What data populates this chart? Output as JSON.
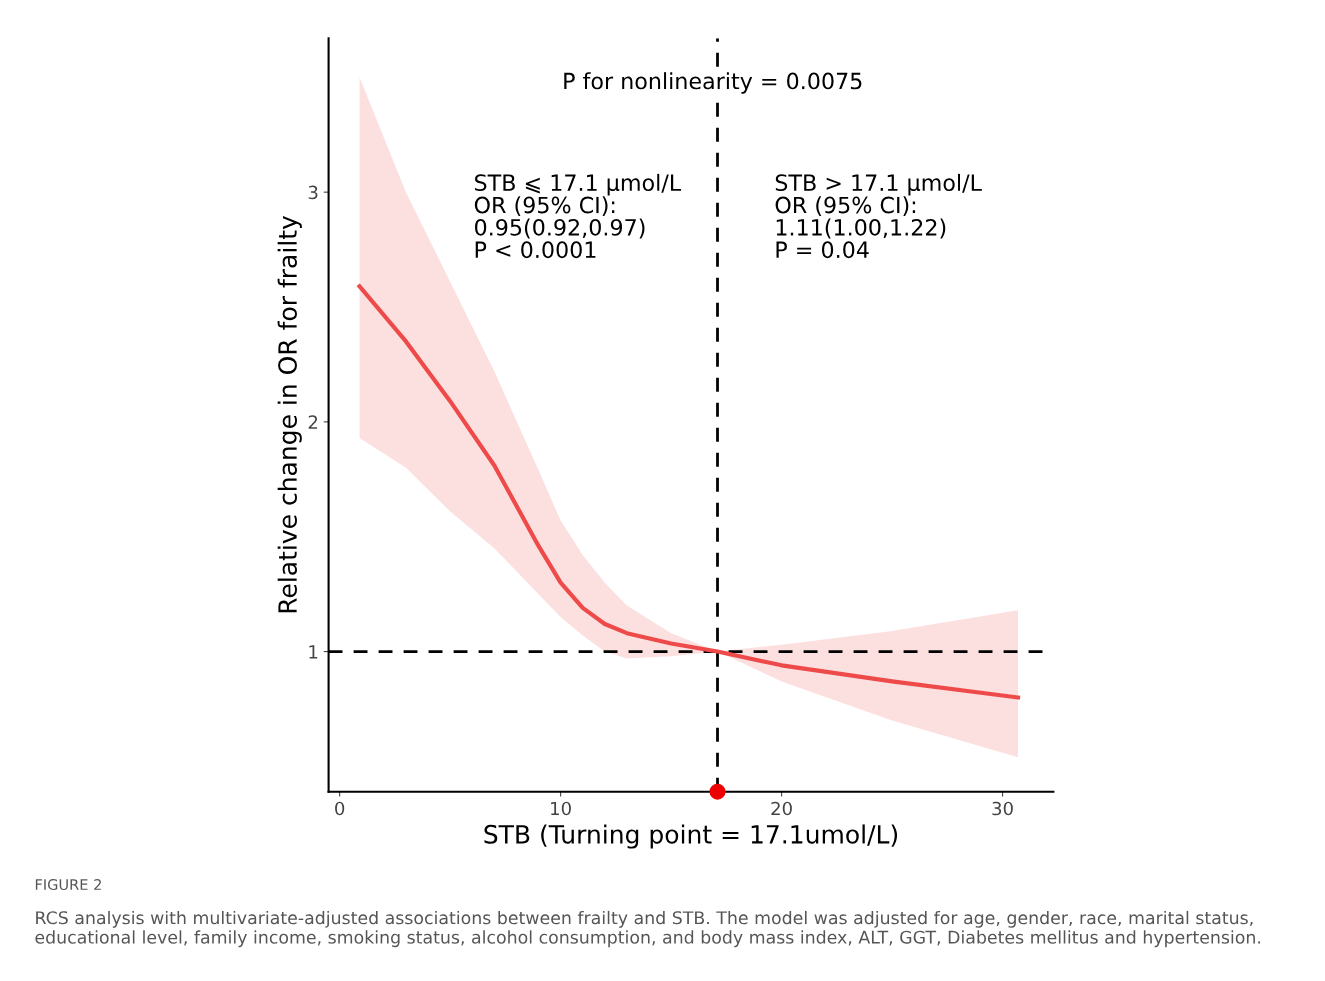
{
  "chart_data": {
    "type": "line",
    "xlabel": "STB (Turning point = 17.1umol/L)",
    "ylabel": "Relative change in OR for frailty",
    "xlim": [
      -0.5,
      32.3
    ],
    "ylim": [
      0.39,
      3.67
    ],
    "xticks": [
      0,
      10,
      20,
      30
    ],
    "yticks": [
      1,
      2,
      3
    ],
    "grid": false,
    "legend": false,
    "series": [
      {
        "color": "#ef4a4a",
        "x": [
          0.9,
          3,
          5,
          7,
          9,
          10,
          11,
          12,
          13,
          15,
          17.1,
          20,
          25,
          30.7
        ],
        "values": [
          2.59,
          2.35,
          2.09,
          1.81,
          1.46,
          1.3,
          1.19,
          1.12,
          1.08,
          1.035,
          1.0,
          0.94,
          0.87,
          0.8
        ],
        "lower": [
          1.93,
          1.8,
          1.61,
          1.45,
          1.25,
          1.15,
          1.07,
          1.0,
          0.97,
          0.98,
          1.0,
          0.87,
          0.7,
          0.54
        ],
        "upper": [
          3.5,
          3.0,
          2.61,
          2.22,
          1.79,
          1.57,
          1.42,
          1.3,
          1.2,
          1.08,
          1.0,
          1.03,
          1.09,
          1.18
        ]
      },
      {
        "type": "scatter",
        "color": "#ee0000",
        "x": [
          17.1
        ],
        "values": [
          0.39
        ]
      }
    ],
    "ref_lines": [
      {
        "axis": "y",
        "value": 1,
        "line_style": "dashed",
        "color": "#000000"
      },
      {
        "axis": "x",
        "value": 17.1,
        "line_style": "dashed",
        "color": "#000000"
      }
    ],
    "annotations": [
      "P for nonlinearity = 0.0075",
      "STB ⩽ 17.1 μmol/L\nOR (95% CI):\n0.95(0.92,0.97)\nP < 0.0001",
      "STB > 17.1 μmol/L\nOR (95% CI):\n1.11(1.00,1.22)\nP = 0.04",
      "FIGURE 2",
      "RCS analysis with multivariate-adjusted associations between frailty and STB. The model was adjusted for age, gender, race, marital status, educational level, family income, smoking status, alcohol consumption, and body mass index, ALT, GGT, Diabetes mellitus and hypertension."
    ]
  }
}
